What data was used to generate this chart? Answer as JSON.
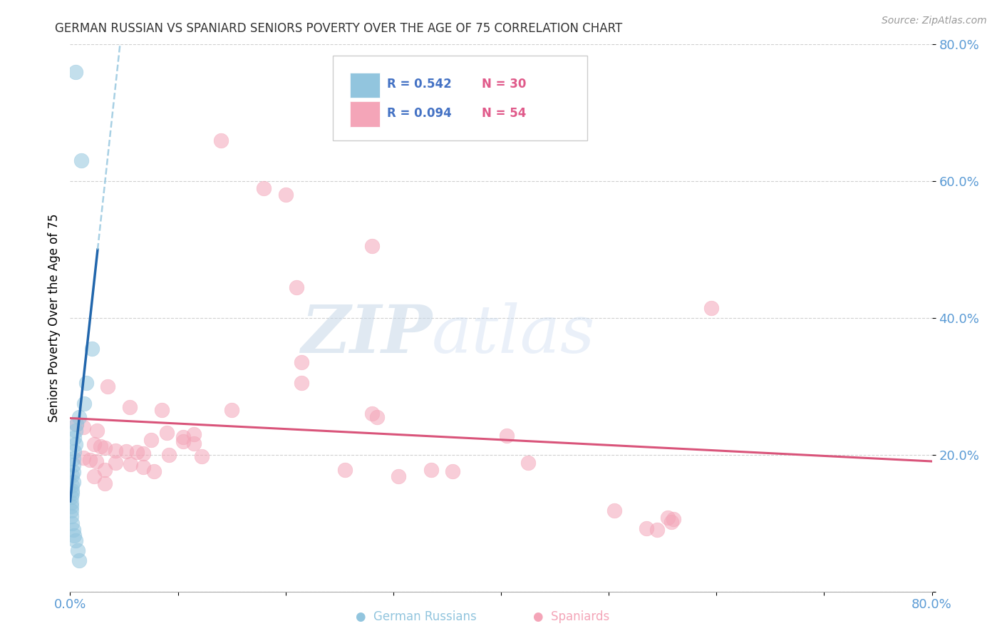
{
  "title": "GERMAN RUSSIAN VS SPANIARD SENIORS POVERTY OVER THE AGE OF 75 CORRELATION CHART",
  "source": "Source: ZipAtlas.com",
  "ylabel": "Seniors Poverty Over the Age of 75",
  "xlim": [
    0,
    0.8
  ],
  "ylim": [
    0,
    0.8
  ],
  "legend_blue_r": "R = 0.542",
  "legend_blue_n": "N = 30",
  "legend_pink_r": "R = 0.094",
  "legend_pink_n": "N = 54",
  "blue_color": "#92c5de",
  "pink_color": "#f4a5b8",
  "blue_line_color": "#2166ac",
  "pink_line_color": "#d9547a",
  "blue_scatter": [
    [
      0.005,
      0.76
    ],
    [
      0.01,
      0.63
    ],
    [
      0.02,
      0.355
    ],
    [
      0.015,
      0.305
    ],
    [
      0.013,
      0.275
    ],
    [
      0.008,
      0.255
    ],
    [
      0.006,
      0.245
    ],
    [
      0.005,
      0.235
    ],
    [
      0.004,
      0.225
    ],
    [
      0.005,
      0.215
    ],
    [
      0.004,
      0.205
    ],
    [
      0.003,
      0.195
    ],
    [
      0.003,
      0.185
    ],
    [
      0.003,
      0.175
    ],
    [
      0.002,
      0.17
    ],
    [
      0.003,
      0.16
    ],
    [
      0.002,
      0.155
    ],
    [
      0.002,
      0.148
    ],
    [
      0.002,
      0.143
    ],
    [
      0.001,
      0.138
    ],
    [
      0.001,
      0.13
    ],
    [
      0.001,
      0.125
    ],
    [
      0.001,
      0.118
    ],
    [
      0.001,
      0.11
    ],
    [
      0.002,
      0.1
    ],
    [
      0.003,
      0.09
    ],
    [
      0.004,
      0.082
    ],
    [
      0.005,
      0.075
    ],
    [
      0.007,
      0.06
    ],
    [
      0.008,
      0.045
    ]
  ],
  "pink_scatter": [
    [
      0.14,
      0.66
    ],
    [
      0.18,
      0.59
    ],
    [
      0.2,
      0.58
    ],
    [
      0.28,
      0.505
    ],
    [
      0.21,
      0.445
    ],
    [
      0.595,
      0.415
    ],
    [
      0.215,
      0.335
    ],
    [
      0.215,
      0.305
    ],
    [
      0.035,
      0.3
    ],
    [
      0.055,
      0.27
    ],
    [
      0.085,
      0.265
    ],
    [
      0.15,
      0.265
    ],
    [
      0.28,
      0.26
    ],
    [
      0.285,
      0.255
    ],
    [
      0.006,
      0.245
    ],
    [
      0.012,
      0.24
    ],
    [
      0.025,
      0.235
    ],
    [
      0.09,
      0.232
    ],
    [
      0.115,
      0.23
    ],
    [
      0.105,
      0.226
    ],
    [
      0.075,
      0.222
    ],
    [
      0.105,
      0.22
    ],
    [
      0.115,
      0.216
    ],
    [
      0.022,
      0.215
    ],
    [
      0.028,
      0.212
    ],
    [
      0.032,
      0.21
    ],
    [
      0.042,
      0.206
    ],
    [
      0.052,
      0.205
    ],
    [
      0.062,
      0.204
    ],
    [
      0.068,
      0.202
    ],
    [
      0.092,
      0.2
    ],
    [
      0.122,
      0.198
    ],
    [
      0.012,
      0.196
    ],
    [
      0.018,
      0.192
    ],
    [
      0.024,
      0.19
    ],
    [
      0.042,
      0.188
    ],
    [
      0.056,
      0.186
    ],
    [
      0.068,
      0.182
    ],
    [
      0.032,
      0.178
    ],
    [
      0.078,
      0.176
    ],
    [
      0.405,
      0.228
    ],
    [
      0.425,
      0.188
    ],
    [
      0.335,
      0.178
    ],
    [
      0.355,
      0.176
    ],
    [
      0.555,
      0.108
    ],
    [
      0.558,
      0.102
    ],
    [
      0.56,
      0.106
    ],
    [
      0.505,
      0.118
    ],
    [
      0.022,
      0.168
    ],
    [
      0.032,
      0.158
    ],
    [
      0.255,
      0.178
    ],
    [
      0.305,
      0.168
    ],
    [
      0.535,
      0.092
    ],
    [
      0.545,
      0.09
    ]
  ],
  "watermark_zip": "ZIP",
  "watermark_atlas": "atlas",
  "background_color": "#ffffff",
  "grid_color": "#d0d0d0"
}
